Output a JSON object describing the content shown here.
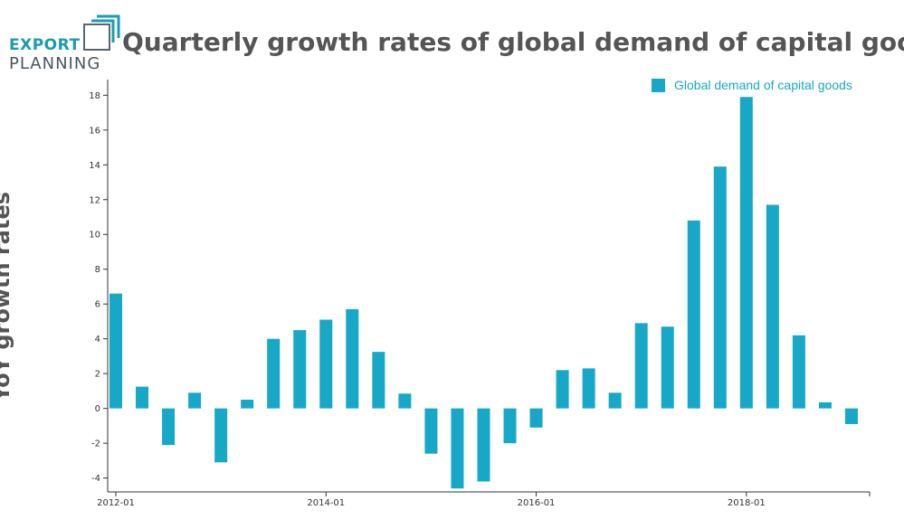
{
  "logo": {
    "line1": "EXPORT",
    "line2": "PLANNING"
  },
  "colors": {
    "bar": "#16a8c6",
    "title": "#555555",
    "axis": "#333333",
    "brand_teal": "#1a9bb0"
  },
  "chart_data": {
    "type": "bar",
    "title": "Quarterly growth rates of global demand of capital goods",
    "ylabel": "YoY growth rates",
    "xlabel": "",
    "categories": [
      "2012-01",
      "2012-04",
      "2012-07",
      "2012-10",
      "2013-01",
      "2013-04",
      "2013-07",
      "2013-10",
      "2014-01",
      "2014-04",
      "2014-07",
      "2014-10",
      "2015-01",
      "2015-04",
      "2015-07",
      "2015-10",
      "2016-01",
      "2016-04",
      "2016-07",
      "2016-10",
      "2017-01",
      "2017-04",
      "2017-07",
      "2017-10",
      "2018-01",
      "2018-04",
      "2018-07",
      "2018-10",
      "2019-01"
    ],
    "series": [
      {
        "name": "Global demand of capital goods",
        "values": [
          6.6,
          1.25,
          -2.1,
          0.9,
          -3.1,
          0.5,
          4.0,
          4.5,
          5.1,
          5.7,
          3.25,
          0.85,
          -2.6,
          -4.6,
          -4.2,
          -2.0,
          -1.1,
          2.2,
          2.3,
          0.9,
          4.9,
          4.7,
          10.8,
          13.9,
          17.9,
          11.7,
          4.2,
          0.35,
          -0.9
        ]
      }
    ],
    "ylim": [
      -4.8,
      18.9
    ],
    "yticks": [
      "-4",
      "-2",
      "0",
      "2",
      "4",
      "6",
      "8",
      "10",
      "12",
      "14",
      "16",
      "18"
    ],
    "xticks": [
      "2012-01",
      "2014-01",
      "2016-01",
      "2018-01"
    ],
    "legend": "top-right",
    "grid": false
  }
}
